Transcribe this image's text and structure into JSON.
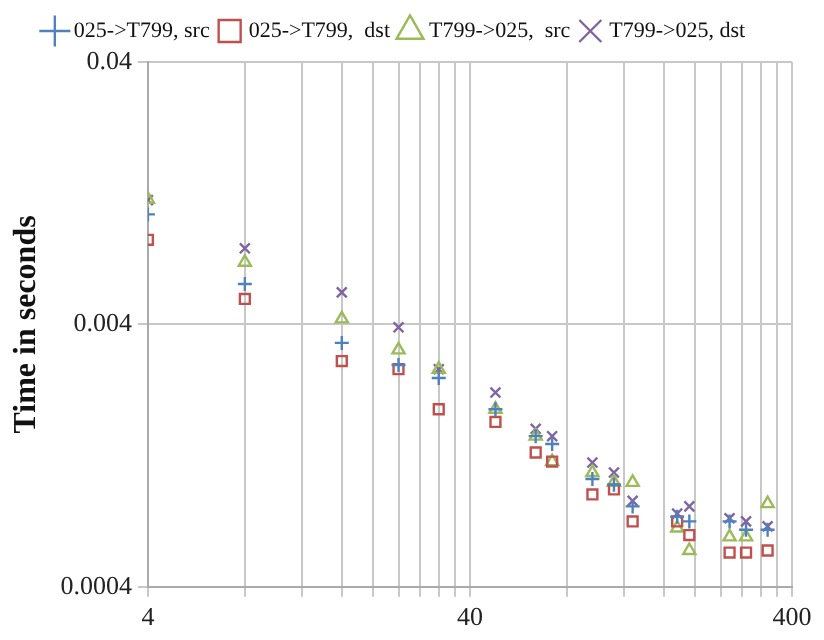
{
  "chart_data": {
    "type": "scatter",
    "ylabel": "Time in seconds",
    "log": "xy",
    "grid": true,
    "legend": "top",
    "x": [
      4,
      8,
      16,
      24,
      32,
      48,
      64,
      72,
      96,
      112,
      128,
      176,
      192,
      256,
      288,
      336
    ],
    "xlim": [
      4,
      400
    ],
    "xticks": [
      4,
      {
        "value": 8,
        "label": null
      },
      {
        "value": 12,
        "label": null
      },
      {
        "value": 16,
        "label": null
      },
      {
        "value": 20,
        "label": null
      },
      {
        "value": 24,
        "label": null
      },
      {
        "value": 28,
        "label": null
      },
      {
        "value": 32,
        "label": null
      },
      {
        "value": 36,
        "label": null
      },
      40,
      {
        "value": 80,
        "label": null
      },
      {
        "value": 120,
        "label": null
      },
      {
        "value": 160,
        "label": null
      },
      {
        "value": 200,
        "label": null
      },
      {
        "value": 240,
        "label": null
      },
      {
        "value": 280,
        "label": null
      },
      {
        "value": 320,
        "label": null
      },
      {
        "value": 360,
        "label": null
      },
      400
    ],
    "ylim": [
      0.0004,
      0.04
    ],
    "yticks": [
      0.0004,
      0.004,
      0.04
    ],
    "series": [
      {
        "name": "025->T799, src",
        "color": "#4f81bd",
        "marker": "plus",
        "values": [
          0.0105,
          0.0057,
          0.0034,
          0.0028,
          0.0025,
          0.0019,
          0.0015,
          0.0014,
          0.00103,
          0.00098,
          0.00081,
          0.00074,
          0.00071,
          0.00071,
          0.00066,
          0.00066
        ]
      },
      {
        "name": "025->T799,  dst",
        "color": "#c0504d",
        "marker": "square",
        "values": [
          0.0084,
          0.005,
          0.0029,
          0.0027,
          0.0019,
          0.0017,
          0.0013,
          0.0012,
          0.0009,
          0.00094,
          0.00071,
          0.00071,
          0.00063,
          0.00054,
          0.00054,
          0.00055
        ]
      },
      {
        "name": "T799->025,  src",
        "color": "#9bbb59",
        "marker": "triangle",
        "values": [
          0.012,
          0.0069,
          0.0042,
          0.0032,
          0.0027,
          0.0019,
          0.0015,
          0.0012,
          0.00109,
          0.001,
          0.001,
          0.00067,
          0.00055,
          0.00062,
          0.00062,
          0.00083
        ]
      },
      {
        "name": "T799->025, dst",
        "color": "#8064a2",
        "marker": "cross",
        "values": [
          0.0119,
          0.0078,
          0.0053,
          0.0039,
          0.0027,
          0.0022,
          0.0016,
          0.0015,
          0.00119,
          0.00109,
          0.00085,
          0.00076,
          0.00081,
          0.00073,
          0.00071,
          0.00068
        ]
      }
    ]
  }
}
